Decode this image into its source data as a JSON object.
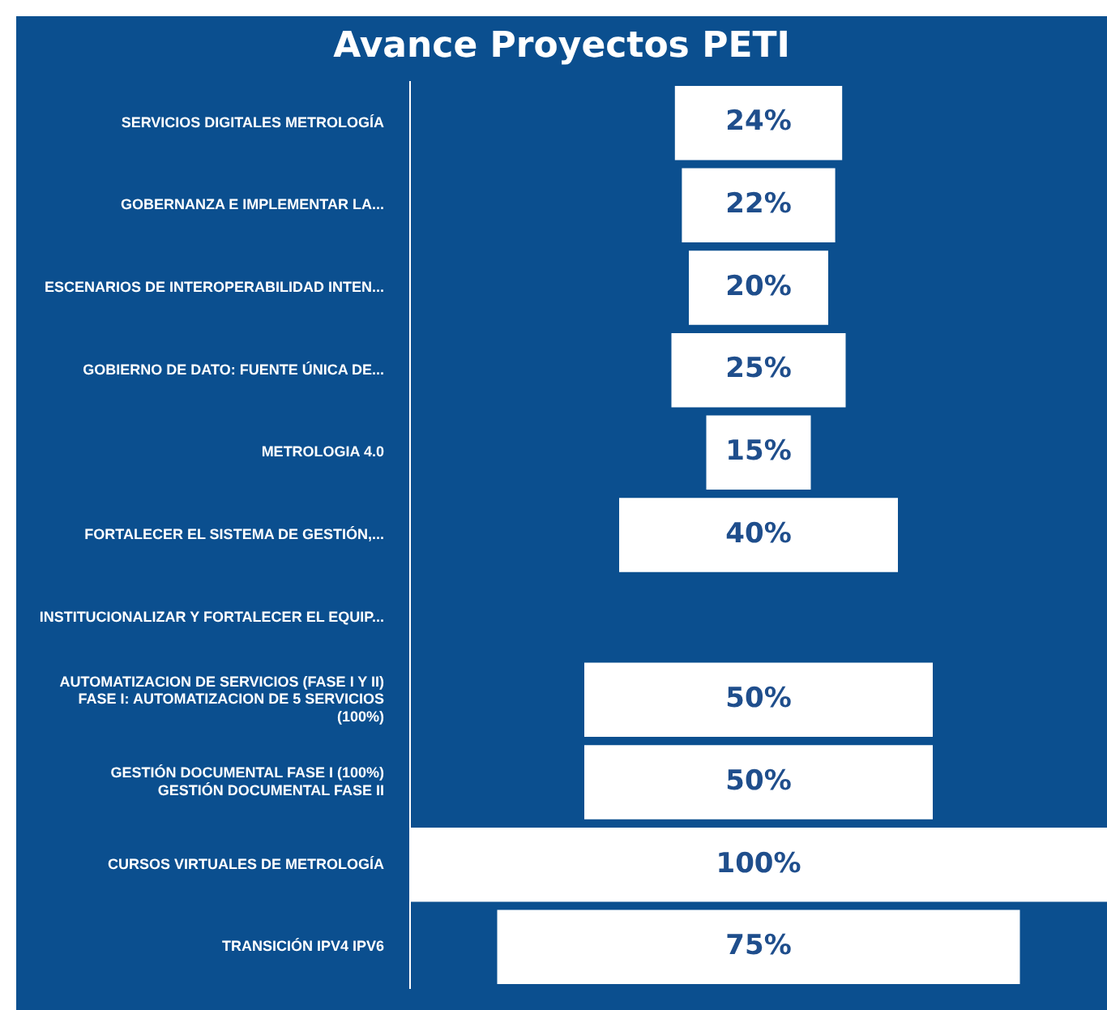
{
  "chart_data": {
    "type": "other",
    "title": "Avance Proyectos PETI",
    "categories": [
      "SERVICIOS DIGITALES METROLOGÍA",
      "GOBERNANZA E IMPLEMENTAR LA...",
      "ESCENARIOS DE INTEROPERABILIDAD INTEN...",
      "GOBIERNO DE DATO: FUENTE ÚNICA DE...",
      "METROLOGIA 4.0",
      "FORTALECER EL SISTEMA DE GESTIÓN,...",
      "INSTITUCIONALIZAR Y FORTALECER EL EQUIP...",
      "AUTOMATIZACION DE SERVICIOS (FASE I Y II)\nFASE I: AUTOMATIZACION DE 5 SERVICIOS\n(100%)",
      "GESTIÓN DOCUMENTAL FASE I (100%)\nGESTIÓN DOCUMENTAL FASE II",
      "CURSOS VIRTUALES DE METROLOGÍA",
      "TRANSICIÓN IPV4 IPV6"
    ],
    "values": [
      24,
      22,
      20,
      25,
      15,
      40,
      null,
      50,
      50,
      100,
      75
    ],
    "value_labels": [
      "24%",
      "22%",
      "20%",
      "25%",
      "15%",
      "40%",
      null,
      "50%",
      "50%",
      "100%",
      "75%"
    ],
    "color": "#ffffff"
  }
}
